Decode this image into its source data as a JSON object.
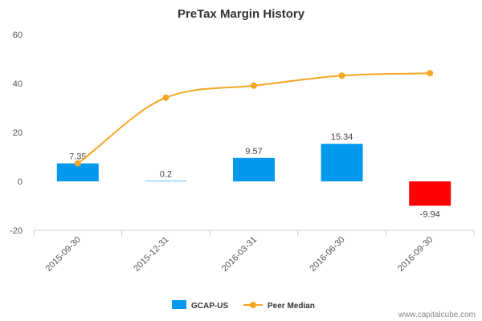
{
  "chart_data": {
    "type": "bar",
    "title": "PreTax Margin History",
    "xlabel": "",
    "ylabel": "",
    "categories": [
      "2015-09-30",
      "2015-12-31",
      "2016-03-31",
      "2016-06-30",
      "2016-09-30"
    ],
    "yticks": [
      -20,
      0,
      20,
      40,
      60
    ],
    "ylim": [
      -20,
      60
    ],
    "series": [
      {
        "name": "GCAP-US",
        "type": "bar",
        "values": [
          7.35,
          0.2,
          9.57,
          15.34,
          -9.94
        ],
        "labels": [
          "7.35",
          "0.2",
          "9.57",
          "15.34",
          "-9.94"
        ],
        "color": "#0099ee",
        "negative_color": "#ff0000"
      },
      {
        "name": "Peer Median",
        "type": "line",
        "values": [
          7.35,
          34.2,
          39.1,
          43.2,
          44.2
        ],
        "color": "#f5a623"
      }
    ],
    "grid": false,
    "legend": "bottom-center"
  },
  "credit": "www.capitalcube.com"
}
